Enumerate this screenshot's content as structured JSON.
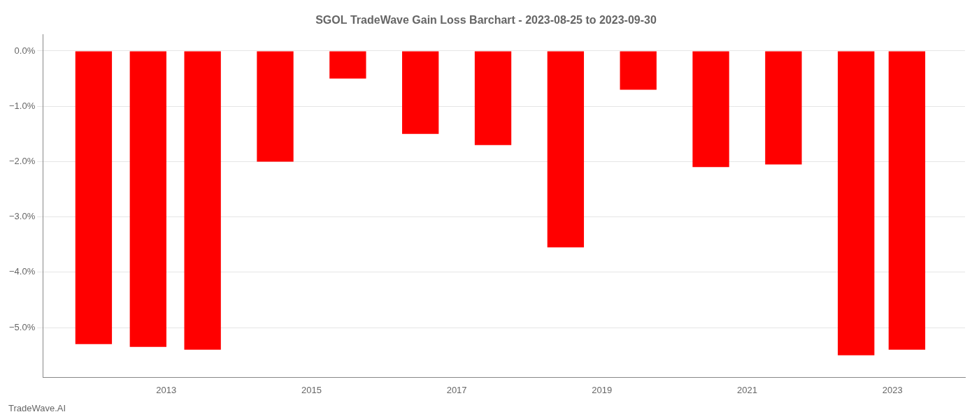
{
  "chart_data": {
    "type": "bar",
    "title": "SGOL TradeWave Gain Loss Barchart - 2023-08-25 to 2023-09-30",
    "annotations": [
      "TradeWave.AI"
    ],
    "x": [
      2012,
      2012.75,
      2013.5,
      2014.5,
      2015.5,
      2016.5,
      2017.5,
      2018.5,
      2019.5,
      2020.5,
      2021.5,
      2022.5,
      2023.2
    ],
    "values": [
      -5.3,
      -5.35,
      -5.4,
      -2.0,
      -0.5,
      -1.5,
      -1.7,
      -3.55,
      -0.7,
      -2.1,
      -2.05,
      -5.5,
      -5.4
    ],
    "color": "#ff0000",
    "xlim": [
      2011.3,
      2024.0
    ],
    "xticks": [
      2013,
      2015,
      2017,
      2019,
      2021,
      2023
    ],
    "ylim": [
      -5.9,
      0.3
    ],
    "yticks": [
      {
        "value": 0.0,
        "label": "0.0%"
      },
      {
        "value": -1.0,
        "label": "−1.0%"
      },
      {
        "value": -2.0,
        "label": "−2.0%"
      },
      {
        "value": -3.0,
        "label": "−3.0%"
      },
      {
        "value": -4.0,
        "label": "−4.0%"
      },
      {
        "value": -5.0,
        "label": "−5.0%"
      }
    ],
    "grid": "y"
  }
}
